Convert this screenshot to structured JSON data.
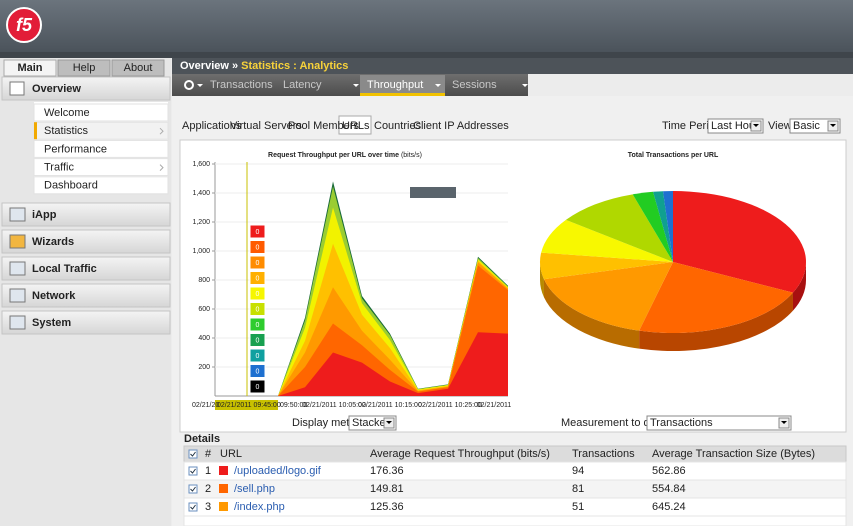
{
  "header": {
    "logo": "f5"
  },
  "nav_tabs": [
    "Main",
    "Help",
    "About"
  ],
  "sidebar": {
    "overview": "Overview",
    "items": [
      "Welcome",
      "Statistics",
      "Performance",
      "Traffic",
      "Dashboard"
    ],
    "sections": [
      "iApp",
      "Wizards",
      "Local Traffic",
      "Network",
      "System"
    ]
  },
  "breadcrumb": {
    "root": "Overview",
    "separator": "»",
    "current": "Statistics : Analytics"
  },
  "menu": [
    "Transactions",
    "Latency",
    "Throughput",
    "Sessions"
  ],
  "tabs": [
    "Applications",
    "Virtual Servers",
    "Pool Members",
    "URLs",
    "Countries",
    "Client IP Addresses"
  ],
  "time_period": {
    "label": "Time Period:",
    "value": "Last Hour"
  },
  "view": {
    "label": "View:",
    "value": "Basic"
  },
  "throughput_chart": {
    "title": "Request Throughput per URL over time",
    "unit": "(bits/s)",
    "yticks": [
      {
        "value": 1600,
        "label": "1,600"
      },
      {
        "value": 1400,
        "label": "1,400"
      },
      {
        "value": 1200,
        "label": "1,200"
      },
      {
        "value": 1000,
        "label": "1,000"
      },
      800,
      600,
      400,
      200
    ],
    "xlabels": [
      "02/21/20",
      "02/21/2011 09:45:00",
      "09:50:00",
      "02/21/2011 10:05:00",
      "02/21/2011 10:15:00",
      "02/21/2011 10:25:00",
      "02/21/2011"
    ],
    "tooltip_values": [
      0,
      0,
      0,
      0,
      0,
      0,
      0,
      0,
      0,
      0,
      0
    ]
  },
  "pie_chart": {
    "title": "Total Transactions per URL"
  },
  "display_method": {
    "label": "Display method:",
    "value": "Stacked"
  },
  "measurement": {
    "label": "Measurement to display:",
    "value": "Transactions"
  },
  "details": {
    "title": "Details",
    "columns": [
      "#",
      "URL",
      "Average Request Throughput (bits/s)",
      "Transactions",
      "Average Transaction Size (Bytes)"
    ],
    "rows": [
      [
        1,
        "/uploaded/logo.gif",
        176.36,
        94,
        562.86
      ],
      [
        2,
        "/sell.php",
        149.81,
        81,
        554.84
      ],
      [
        3,
        "/index.php",
        125.36,
        51,
        645.24
      ]
    ]
  }
}
